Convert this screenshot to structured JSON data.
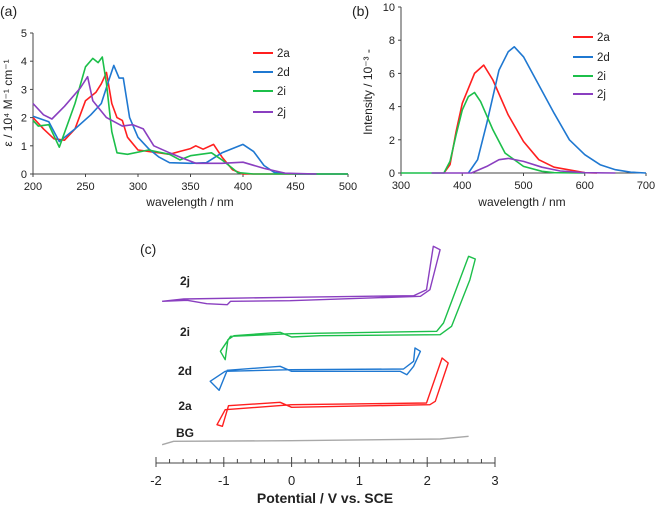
{
  "colors": {
    "2a": "#ff1f1f",
    "2d": "#1f78d1",
    "2i": "#1cbf4a",
    "2j": "#8a3fc0",
    "BG": "#a8a8a8",
    "axis": "#444444"
  },
  "chart_data": [
    {
      "panel_label": "(a)",
      "type": "line",
      "xlabel": "wavelength / nm",
      "ylabel": "ε / 10⁴ M⁻¹ cm⁻¹",
      "xlim": [
        200,
        500
      ],
      "ylim": [
        0,
        5
      ],
      "xticks": [
        "200",
        "250",
        "300",
        "350",
        "400",
        "450",
        "500"
      ],
      "yticks": [
        "0",
        "1",
        "2",
        "3",
        "4",
        "5"
      ],
      "legend": "top-right",
      "series": [
        {
          "name": "2a",
          "x": [
            200,
            210,
            220,
            230,
            240,
            250,
            260,
            265,
            270,
            275,
            280,
            285,
            290,
            300,
            310,
            320,
            330,
            340,
            350,
            355,
            362,
            372,
            380,
            390,
            400,
            500
          ],
          "y": [
            2.0,
            1.6,
            1.25,
            1.2,
            1.6,
            2.6,
            2.9,
            3.2,
            3.6,
            2.5,
            2.0,
            1.9,
            1.3,
            0.85,
            0.8,
            0.75,
            0.7,
            0.8,
            0.9,
            1.0,
            0.88,
            1.05,
            0.6,
            0.15,
            0,
            0
          ]
        },
        {
          "name": "2d",
          "x": [
            200,
            215,
            225,
            240,
            255,
            265,
            272,
            277,
            282,
            286,
            292,
            300,
            310,
            320,
            330,
            350,
            365,
            380,
            400,
            410,
            420,
            430,
            450,
            500
          ],
          "y": [
            2.05,
            1.85,
            1.15,
            1.6,
            2.1,
            2.5,
            3.3,
            3.85,
            3.4,
            3.4,
            2.0,
            1.3,
            0.9,
            0.6,
            0.4,
            0.38,
            0.4,
            0.75,
            1.05,
            0.8,
            0.3,
            0.05,
            0,
            0
          ]
        },
        {
          "name": "2i",
          "x": [
            200,
            205,
            215,
            225,
            240,
            250,
            257,
            262,
            266,
            270,
            275,
            280,
            290,
            310,
            330,
            340,
            350,
            370,
            380,
            395,
            410,
            500
          ],
          "y": [
            1.9,
            1.7,
            1.75,
            0.95,
            2.5,
            3.8,
            4.1,
            3.95,
            4.15,
            3.2,
            1.5,
            0.75,
            0.7,
            0.85,
            0.7,
            0.5,
            0.65,
            0.75,
            0.5,
            0.05,
            0,
            0
          ]
        },
        {
          "name": "2j",
          "x": [
            200,
            210,
            218,
            230,
            245,
            252,
            257,
            270,
            285,
            295,
            305,
            315,
            330,
            340,
            355,
            380,
            400,
            420,
            440,
            470
          ],
          "y": [
            2.5,
            2.1,
            1.95,
            2.4,
            3.05,
            3.45,
            2.6,
            2.0,
            1.7,
            1.75,
            1.6,
            1.0,
            0.75,
            0.6,
            0.38,
            0.38,
            0.42,
            0.2,
            0.03,
            0
          ]
        }
      ]
    },
    {
      "panel_label": "(b)",
      "type": "line",
      "xlabel": "wavelength / nm",
      "ylabel": "Intensity / 10⁻³ -",
      "xlim": [
        300,
        700
      ],
      "ylim": [
        0,
        10
      ],
      "xticks": [
        "300",
        "400",
        "500",
        "600",
        "700"
      ],
      "yticks": [
        "0",
        "2",
        "4",
        "6",
        "8",
        "10"
      ],
      "legend": "top-right",
      "series": [
        {
          "name": "2a",
          "x": [
            370,
            380,
            390,
            400,
            420,
            435,
            450,
            475,
            500,
            525,
            550,
            600,
            620
          ],
          "y": [
            0,
            0.5,
            2.5,
            4.2,
            6.0,
            6.5,
            5.6,
            3.5,
            1.9,
            0.8,
            0.35,
            0.02,
            0
          ]
        },
        {
          "name": "2d",
          "x": [
            410,
            425,
            440,
            460,
            475,
            485,
            500,
            525,
            550,
            575,
            600,
            625,
            650,
            675,
            700
          ],
          "y": [
            0,
            0.8,
            3.0,
            6.2,
            7.3,
            7.6,
            7.0,
            5.3,
            3.6,
            2.0,
            1.1,
            0.5,
            0.2,
            0.05,
            0
          ]
        },
        {
          "name": "2i",
          "x": [
            300,
            370,
            380,
            390,
            400,
            410,
            420,
            430,
            450,
            470,
            500,
            530,
            550,
            600
          ],
          "y": [
            0,
            0,
            0.7,
            2.3,
            3.8,
            4.6,
            4.85,
            4.3,
            2.6,
            1.2,
            0.4,
            0.1,
            0.02,
            0
          ]
        },
        {
          "name": "2j",
          "x": [
            350,
            415,
            440,
            460,
            475,
            500,
            530,
            560,
            600,
            650
          ],
          "y": [
            0,
            0,
            0.4,
            0.8,
            0.88,
            0.7,
            0.35,
            0.12,
            0.02,
            0
          ]
        }
      ]
    },
    {
      "panel_label": "(c)",
      "type": "line",
      "xlabel": "Potential / V vs. SCE",
      "ylabel": "",
      "xlim": [
        -2,
        3
      ],
      "yunits": "current (a.u., traces offset)",
      "xticks": [
        "-2",
        "-1",
        "0",
        "1",
        "2",
        "3"
      ],
      "series": [
        {
          "name": "2j",
          "x": [
            -1.91,
            -1.59,
            -0.02,
            1.8,
            1.99,
            2.09,
            2.19,
            2.14,
            2.04,
            1.9,
            -0.02,
            -0.9,
            -0.95,
            -1.25,
            -1.54,
            -1.91
          ],
          "y": [
            16.17,
            16.4,
            16.57,
            16.73,
            17.33,
            21.67,
            21.33,
            20.0,
            17.33,
            16.67,
            16.23,
            16.17,
            15.83,
            15.93,
            16.27,
            16.17
          ]
        },
        {
          "name": "2i",
          "x": [
            0,
            2.14,
            2.24,
            2.61,
            2.71,
            2.63,
            2.36,
            2.19,
            0.42,
            0,
            -0.17,
            -0.85,
            -0.94,
            -0.98,
            -1.05,
            -0.9,
            0
          ],
          "y": [
            12.93,
            13.17,
            14.0,
            20.67,
            20.4,
            18.33,
            13.67,
            12.83,
            12.73,
            12.6,
            13.07,
            12.73,
            12.33,
            10.33,
            11.17,
            12.67,
            12.93
          ]
        },
        {
          "name": "2d",
          "x": [
            0,
            1.65,
            1.8,
            1.82,
            1.9,
            1.8,
            1.7,
            1.6,
            0,
            -0.17,
            -0.95,
            -1.07,
            -1.2,
            -0.98,
            0
          ],
          "y": [
            9.33,
            9.4,
            10.17,
            11.5,
            11.17,
            9.67,
            8.83,
            9.17,
            9.17,
            9.67,
            9.27,
            7.27,
            8.17,
            9.17,
            9.33
          ]
        },
        {
          "name": "2a",
          "x": [
            0,
            1.99,
            2.22,
            2.31,
            2.12,
            2.04,
            0,
            -0.17,
            -0.93,
            -1.02,
            -1.1,
            -0.98,
            0
          ],
          "y": [
            5.83,
            6.0,
            10.5,
            10.0,
            6.17,
            5.83,
            5.57,
            6.07,
            5.73,
            3.67,
            3.83,
            5.33,
            5.83
          ]
        },
        {
          "name": "BG",
          "x": [
            -1.91,
            -1.74,
            0,
            2.19,
            2.61
          ],
          "y": [
            1.83,
            2.17,
            2.23,
            2.4,
            2.67
          ]
        }
      ]
    }
  ]
}
